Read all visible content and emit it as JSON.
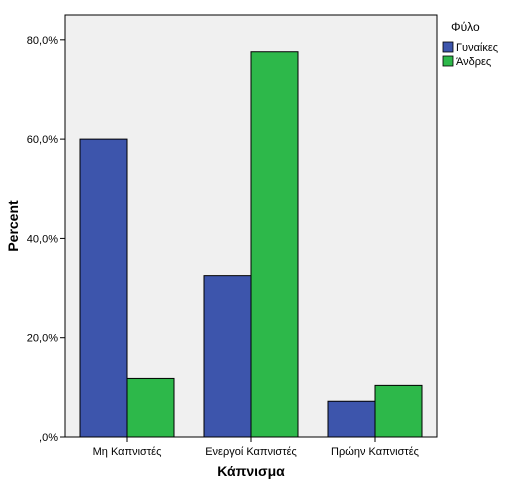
{
  "chart_data": {
    "type": "bar",
    "categories": [
      "Μη Καπνιστές",
      "Ενεργοί Καπνιστές",
      "Πρώην Καπνιστές"
    ],
    "series": [
      {
        "name": "Γυναίκες",
        "values": [
          60.0,
          32.5,
          7.2
        ],
        "color": "#3d55ac"
      },
      {
        "name": "Άνδρες",
        "values": [
          11.8,
          77.6,
          10.4
        ],
        "color": "#2db84a"
      }
    ],
    "xlabel": "Κάπνισμα",
    "ylabel": "Percent",
    "ylim": [
      0,
      85
    ],
    "yticks": [
      0,
      20,
      40,
      60,
      80
    ],
    "ytick_labels": [
      ",0%",
      "20,0%",
      "40,0%",
      "60,0%",
      "80,0%"
    ],
    "legend_title": "Φύλο",
    "legend_position": "top-right",
    "grid": false,
    "plot_background": "#f0f0f0"
  }
}
